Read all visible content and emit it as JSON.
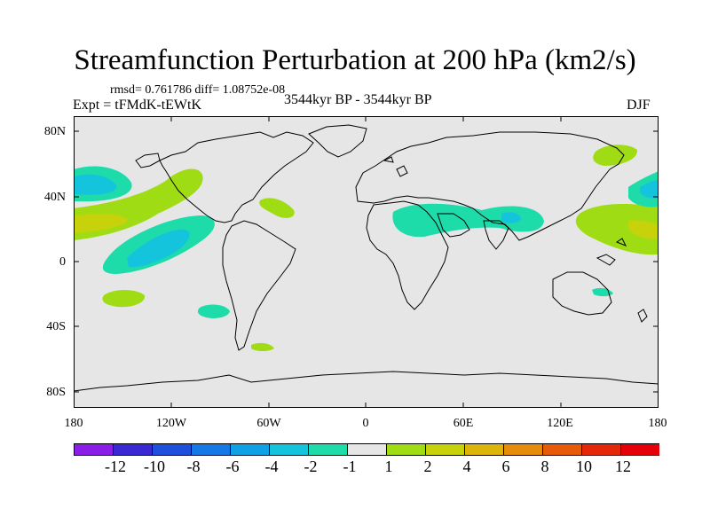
{
  "title": "Streamfunction Perturbation at 200 hPa (km2/s)",
  "stats": "rmsd= 0.761786 diff= 1.08752e-08",
  "expt": "Expt = tFMdK-tEWtK",
  "period": "3544kyr BP - 3544kyr BP",
  "season": "DJF",
  "y_axis": {
    "ticks": [
      "80N",
      "40N",
      "0",
      "40S",
      "80S"
    ]
  },
  "x_axis": {
    "ticks": [
      "180",
      "120W",
      "60W",
      "0",
      "60E",
      "120E",
      "180"
    ]
  },
  "colorbar": {
    "labels": [
      "-12",
      "-10",
      "-8",
      "-6",
      "-4",
      "-2",
      "-1",
      "1",
      "2",
      "4",
      "6",
      "8",
      "10",
      "12"
    ],
    "colors": [
      "#8a1ee6",
      "#3c28d2",
      "#1e50dc",
      "#1478e6",
      "#0fa0e6",
      "#14c3dc",
      "#1edcaa",
      "#e6e6e6",
      "#a0dc14",
      "#c8d20a",
      "#dcb40a",
      "#e68c0a",
      "#e65a0a",
      "#e6280a",
      "#e6000a"
    ]
  },
  "palette": {
    "background": "#e6e6e6",
    "neg": "#1edcaa",
    "neg2": "#14c3dc",
    "pos": "#a0dc14",
    "pos2": "#c8d20a"
  }
}
